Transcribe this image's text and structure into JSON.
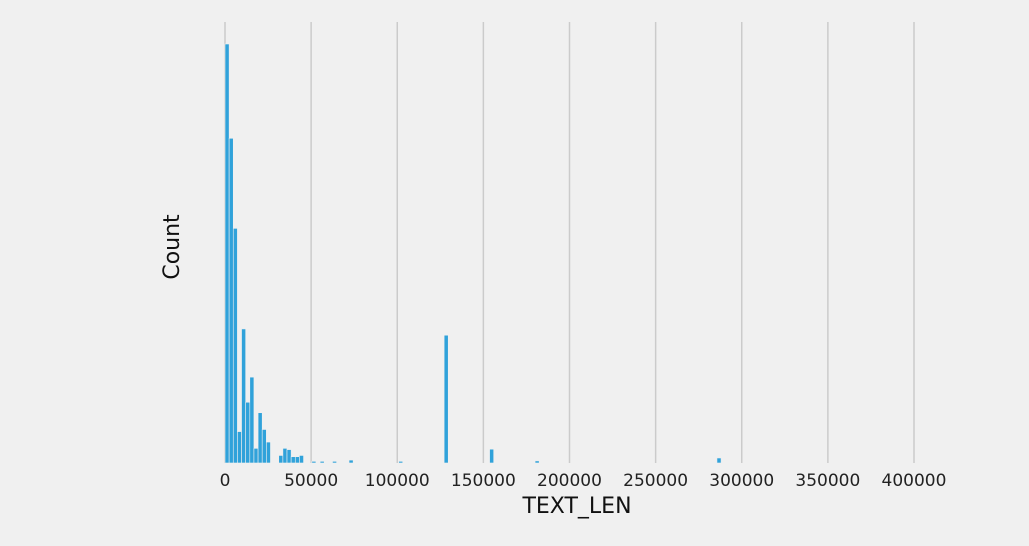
{
  "chart_data": {
    "type": "bar",
    "subtype": "histogram",
    "title": "",
    "xlabel": "TEXT_LEN",
    "ylabel": "Count",
    "y_ticks_visible": false,
    "grid": "vertical",
    "xlim": [
      0,
      400000
    ],
    "x_ticks": [
      0,
      50000,
      100000,
      150000,
      200000,
      250000,
      300000,
      350000,
      400000
    ],
    "ylim": [
      0,
      100
    ],
    "bin_width": 2400,
    "bar_color": "#30a2da",
    "background_color": "#f0f0f0",
    "bins": [
      {
        "x": 0,
        "count": 100
      },
      {
        "x": 2400,
        "count": 77.5
      },
      {
        "x": 4800,
        "count": 56
      },
      {
        "x": 7200,
        "count": 7.5
      },
      {
        "x": 9600,
        "count": 32
      },
      {
        "x": 12000,
        "count": 14.5
      },
      {
        "x": 14400,
        "count": 20.5
      },
      {
        "x": 16800,
        "count": 3.5
      },
      {
        "x": 19200,
        "count": 12
      },
      {
        "x": 21600,
        "count": 8
      },
      {
        "x": 24000,
        "count": 5
      },
      {
        "x": 31200,
        "count": 1.8
      },
      {
        "x": 33600,
        "count": 3.5
      },
      {
        "x": 36000,
        "count": 3.2
      },
      {
        "x": 38400,
        "count": 1.5
      },
      {
        "x": 40800,
        "count": 1.5
      },
      {
        "x": 43200,
        "count": 1.8
      },
      {
        "x": 50400,
        "count": 0.4
      },
      {
        "x": 55200,
        "count": 0.4
      },
      {
        "x": 62400,
        "count": 0.4
      },
      {
        "x": 72000,
        "count": 0.7
      },
      {
        "x": 100800,
        "count": 0.4
      },
      {
        "x": 127200,
        "count": 30.5
      },
      {
        "x": 153600,
        "count": 3.3
      },
      {
        "x": 180000,
        "count": 0.5
      },
      {
        "x": 285600,
        "count": 1.2
      }
    ]
  }
}
